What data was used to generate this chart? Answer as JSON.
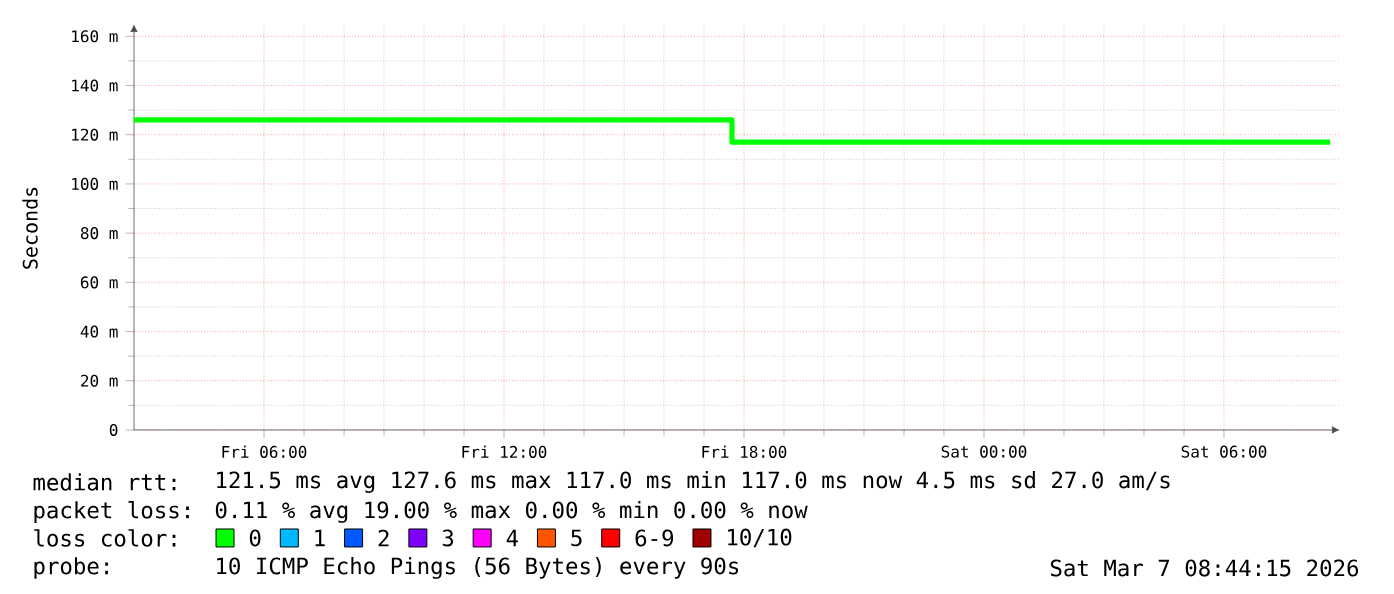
{
  "chart_data": {
    "type": "step",
    "ylabel": "Seconds",
    "x": [
      "2026-03-06T02:45",
      "2026-03-06T17:42",
      "2026-03-07T08:39"
    ],
    "series": [
      {
        "name": "0",
        "color": "#00ff00",
        "values": [
          126,
          117,
          117
        ]
      },
      {
        "name": "1",
        "color": "#00b8ff",
        "values": [
          null,
          null,
          null
        ]
      },
      {
        "name": "2",
        "color": "#0059ff",
        "values": [
          null,
          null,
          null
        ]
      },
      {
        "name": "3",
        "color": "#7e00ff",
        "values": [
          null,
          null,
          null
        ]
      },
      {
        "name": "4",
        "color": "#ff00ff",
        "values": [
          null,
          null,
          null
        ]
      },
      {
        "name": "5",
        "color": "#ff5500",
        "values": [
          null,
          null,
          null
        ]
      },
      {
        "name": "6-9",
        "color": "#ff0000",
        "values": [
          null,
          null,
          null
        ]
      },
      {
        "name": "10/10",
        "color": "#a10000",
        "values": [
          null,
          null,
          null
        ]
      }
    ],
    "legend": "bottom",
    "legend_title": "loss color:",
    "xlim": [
      "2026-03-06T02:45",
      "2026-03-07T08:54"
    ],
    "ylim": [
      0,
      165
    ],
    "xticks": [
      {
        "value": "2026-03-06T06:00",
        "label": "Fri 06:00"
      },
      {
        "value": "2026-03-06T12:00",
        "label": "Fri 12:00"
      },
      {
        "value": "2026-03-06T18:00",
        "label": "Fri 18:00"
      },
      {
        "value": "2026-03-07T00:00",
        "label": "Sat 00:00"
      },
      {
        "value": "2026-03-07T06:00",
        "label": "Sat 06:00"
      }
    ],
    "yticks": [
      0,
      {
        "value": 20,
        "label": "20 m"
      },
      {
        "value": 40,
        "label": "40 m"
      },
      {
        "value": 60,
        "label": "60 m"
      },
      {
        "value": 80,
        "label": "80 m"
      },
      {
        "value": 100,
        "label": "100 m"
      },
      {
        "value": 120,
        "label": "120 m"
      },
      {
        "value": 140,
        "label": "140 m"
      },
      {
        "value": 160,
        "label": "160 m"
      }
    ],
    "grid": true,
    "annotations": [
      "median rtt:",
      "121.5 ms avg  127.6 ms max  117.0 ms min  117.0 ms now  4.5 ms sd  27.0   am/s",
      "packet loss:",
      "0.11 % avg  19.00 % max  0.00 % min  0.00 % now",
      "probe:",
      "10 ICMP Echo Pings (56 Bytes) every 90s",
      "Sat Mar  7 08:44:15 2026"
    ]
  }
}
